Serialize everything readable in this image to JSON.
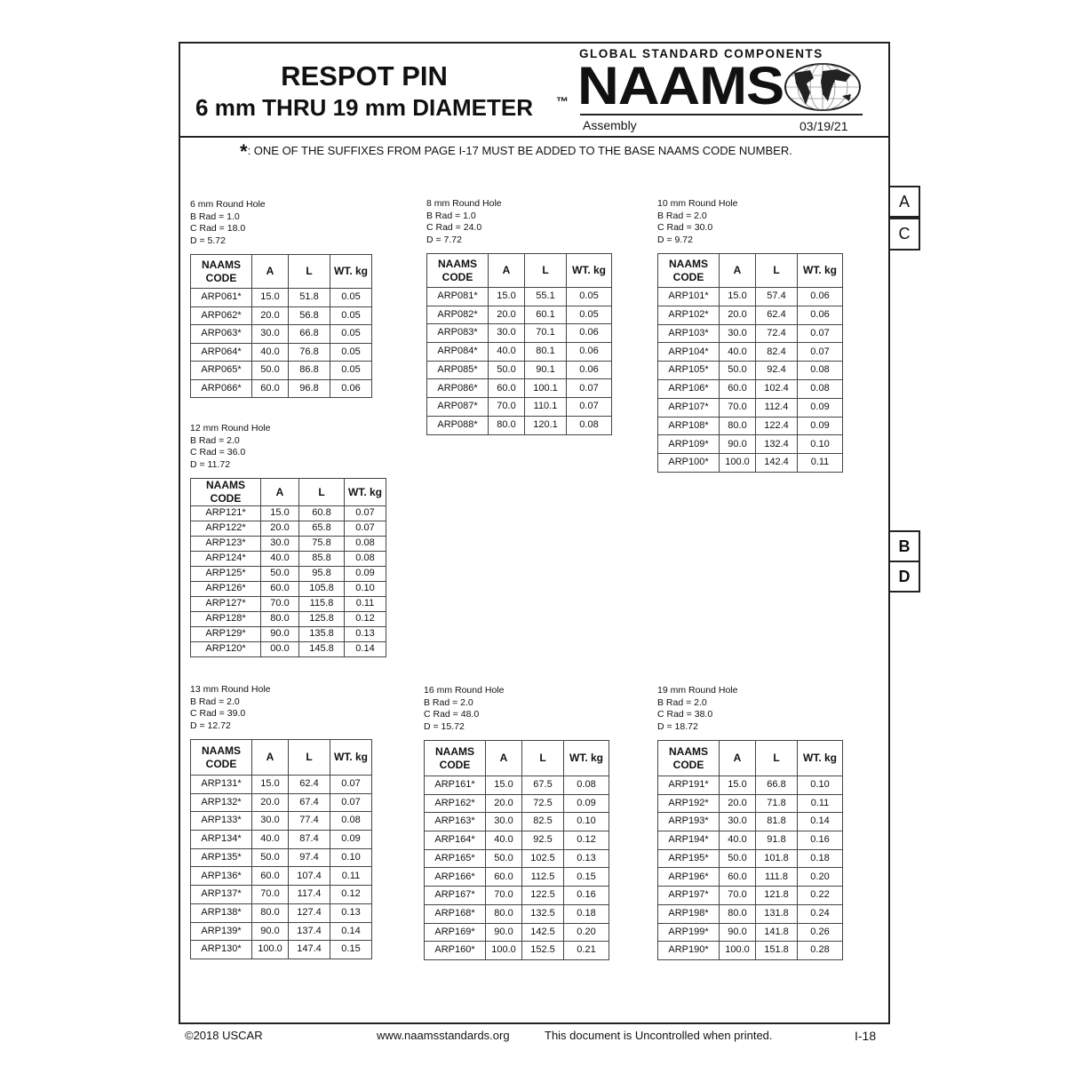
{
  "header": {
    "title": "RESPOT PIN",
    "subtitle": "6 mm THRU 19 mm DIAMETER",
    "tm": "™",
    "tagline": "GLOBAL STANDARD COMPONENTS",
    "logo": "NAAMS",
    "category": "Assembly",
    "date": "03/19/21"
  },
  "note": {
    "symbol": "*",
    "text": ": ONE OF THE SUFFIXES FROM PAGE I-17 MUST BE ADDED TO THE BASE NAAMS CODE NUMBER."
  },
  "side_tabs": [
    "A",
    "C",
    "B",
    "D"
  ],
  "columns": [
    "NAAMS CODE",
    "A",
    "L",
    "WT. kg"
  ],
  "tables": [
    {
      "title": "6 mm Round Hole",
      "b_rad": "B Rad = 1.0",
      "c_rad": "C Rad = 18.0",
      "d": "D = 5.72",
      "rows": [
        [
          "ARP061*",
          "15.0",
          "51.8",
          "0.05"
        ],
        [
          "ARP062*",
          "20.0",
          "56.8",
          "0.05"
        ],
        [
          "ARP063*",
          "30.0",
          "66.8",
          "0.05"
        ],
        [
          "ARP064*",
          "40.0",
          "76.8",
          "0.05"
        ],
        [
          "ARP065*",
          "50.0",
          "86.8",
          "0.05"
        ],
        [
          "ARP066*",
          "60.0",
          "96.8",
          "0.06"
        ]
      ]
    },
    {
      "title": "8 mm Round Hole",
      "b_rad": "B Rad = 1.0",
      "c_rad": "C Rad = 24.0",
      "d": "D = 7.72",
      "rows": [
        [
          "ARP081*",
          "15.0",
          "55.1",
          "0.05"
        ],
        [
          "ARP082*",
          "20.0",
          "60.1",
          "0.05"
        ],
        [
          "ARP083*",
          "30.0",
          "70.1",
          "0.06"
        ],
        [
          "ARP084*",
          "40.0",
          "80.1",
          "0.06"
        ],
        [
          "ARP085*",
          "50.0",
          "90.1",
          "0.06"
        ],
        [
          "ARP086*",
          "60.0",
          "100.1",
          "0.07"
        ],
        [
          "ARP087*",
          "70.0",
          "110.1",
          "0.07"
        ],
        [
          "ARP088*",
          "80.0",
          "120.1",
          "0.08"
        ]
      ]
    },
    {
      "title": "10 mm Round Hole",
      "b_rad": "B Rad = 2.0",
      "c_rad": "C Rad = 30.0",
      "d": "D = 9.72",
      "rows": [
        [
          "ARP101*",
          "15.0",
          "57.4",
          "0.06"
        ],
        [
          "ARP102*",
          "20.0",
          "62.4",
          "0.06"
        ],
        [
          "ARP103*",
          "30.0",
          "72.4",
          "0.07"
        ],
        [
          "ARP104*",
          "40.0",
          "82.4",
          "0.07"
        ],
        [
          "ARP105*",
          "50.0",
          "92.4",
          "0.08"
        ],
        [
          "ARP106*",
          "60.0",
          "102.4",
          "0.08"
        ],
        [
          "ARP107*",
          "70.0",
          "112.4",
          "0.09"
        ],
        [
          "ARP108*",
          "80.0",
          "122.4",
          "0.09"
        ],
        [
          "ARP109*",
          "90.0",
          "132.4",
          "0.10"
        ],
        [
          "ARP100*",
          "100.0",
          "142.4",
          "0.11"
        ]
      ]
    },
    {
      "title": "12 mm Round Hole",
      "b_rad": "B Rad = 2.0",
      "c_rad": "C Rad = 36.0",
      "d": "D = 11.72",
      "rows": [
        [
          "ARP121*",
          "15.0",
          "60.8",
          "0.07"
        ],
        [
          "ARP122*",
          "20.0",
          "65.8",
          "0.07"
        ],
        [
          "ARP123*",
          "30.0",
          "75.8",
          "0.08"
        ],
        [
          "ARP124*",
          "40.0",
          "85.8",
          "0.08"
        ],
        [
          "ARP125*",
          "50.0",
          "95.8",
          "0.09"
        ],
        [
          "ARP126*",
          "60.0",
          "105.8",
          "0.10"
        ],
        [
          "ARP127*",
          "70.0",
          "115.8",
          "0.11"
        ],
        [
          "ARP128*",
          "80.0",
          "125.8",
          "0.12"
        ],
        [
          "ARP129*",
          "90.0",
          "135.8",
          "0.13"
        ],
        [
          "ARP120*",
          "00.0",
          "145.8",
          "0.14"
        ]
      ]
    },
    {
      "title": "13 mm Round Hole",
      "b_rad": "B Rad = 2.0",
      "c_rad": "C Rad = 39.0",
      "d": "D = 12.72",
      "rows": [
        [
          "ARP131*",
          "15.0",
          "62.4",
          "0.07"
        ],
        [
          "ARP132*",
          "20.0",
          "67.4",
          "0.07"
        ],
        [
          "ARP133*",
          "30.0",
          "77.4",
          "0.08"
        ],
        [
          "ARP134*",
          "40.0",
          "87.4",
          "0.09"
        ],
        [
          "ARP135*",
          "50.0",
          "97.4",
          "0.10"
        ],
        [
          "ARP136*",
          "60.0",
          "107.4",
          "0.11"
        ],
        [
          "ARP137*",
          "70.0",
          "117.4",
          "0.12"
        ],
        [
          "ARP138*",
          "80.0",
          "127.4",
          "0.13"
        ],
        [
          "ARP139*",
          "90.0",
          "137.4",
          "0.14"
        ],
        [
          "ARP130*",
          "100.0",
          "147.4",
          "0.15"
        ]
      ]
    },
    {
      "title": "16 mm Round Hole",
      "b_rad": "B Rad = 2.0",
      "c_rad": "C Rad = 48.0",
      "d": "D = 15.72",
      "rows": [
        [
          "ARP161*",
          "15.0",
          "67.5",
          "0.08"
        ],
        [
          "ARP162*",
          "20.0",
          "72.5",
          "0.09"
        ],
        [
          "ARP163*",
          "30.0",
          "82.5",
          "0.10"
        ],
        [
          "ARP164*",
          "40.0",
          "92.5",
          "0.12"
        ],
        [
          "ARP165*",
          "50.0",
          "102.5",
          "0.13"
        ],
        [
          "ARP166*",
          "60.0",
          "112.5",
          "0.15"
        ],
        [
          "ARP167*",
          "70.0",
          "122.5",
          "0.16"
        ],
        [
          "ARP168*",
          "80.0",
          "132.5",
          "0.18"
        ],
        [
          "ARP169*",
          "90.0",
          "142.5",
          "0.20"
        ],
        [
          "ARP160*",
          "100.0",
          "152.5",
          "0.21"
        ]
      ]
    },
    {
      "title": "19 mm Round Hole",
      "b_rad": "B Rad = 2.0",
      "c_rad": "C Rad = 38.0",
      "d": "D = 18.72",
      "rows": [
        [
          "ARP191*",
          "15.0",
          "66.8",
          "0.10"
        ],
        [
          "ARP192*",
          "20.0",
          "71.8",
          "0.11"
        ],
        [
          "ARP193*",
          "30.0",
          "81.8",
          "0.14"
        ],
        [
          "ARP194*",
          "40.0",
          "91.8",
          "0.16"
        ],
        [
          "ARP195*",
          "50.0",
          "101.8",
          "0.18"
        ],
        [
          "ARP196*",
          "60.0",
          "111.8",
          "0.20"
        ],
        [
          "ARP197*",
          "70.0",
          "121.8",
          "0.22"
        ],
        [
          "ARP198*",
          "80.0",
          "131.8",
          "0.24"
        ],
        [
          "ARP199*",
          "90.0",
          "141.8",
          "0.26"
        ],
        [
          "ARP190*",
          "100.0",
          "151.8",
          "0.28"
        ]
      ]
    }
  ],
  "footer": {
    "copyright": "©2018 USCAR",
    "url": "www.naamsstandards.org",
    "disclaimer": "This document is Uncontrolled when printed.",
    "page": "I-18"
  }
}
